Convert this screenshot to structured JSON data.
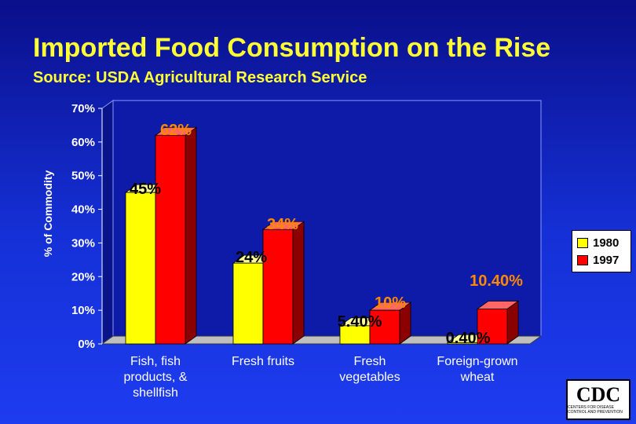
{
  "slide": {
    "title": "Imported Food Consumption on the Rise",
    "subtitle": "Source: USDA Agricultural Research Service"
  },
  "colors": {
    "text": "#ffff33",
    "label": "#ffffff",
    "bar1980": "#ffff00",
    "bar1997": "#ff0000",
    "pct1997": "#ff8800",
    "pct1980": "#000000",
    "plot": "#0d1ba8"
  },
  "logo": {
    "text": "CDC",
    "subtext": "CENTERS FOR DISEASE CONTROL AND PREVENTION"
  },
  "chart_data": {
    "type": "bar",
    "style": "3d-clustered",
    "ylabel": "% of Commodity",
    "ylim": [
      0,
      70
    ],
    "yticks": [
      "0%",
      "10%",
      "20%",
      "30%",
      "40%",
      "50%",
      "60%",
      "70%"
    ],
    "categories": [
      [
        "Fish, fish",
        "products, &",
        "shellfish"
      ],
      [
        "Fresh fruits"
      ],
      [
        "Fresh",
        "vegetables"
      ],
      [
        "Foreign-grown",
        "wheat"
      ]
    ],
    "series": [
      {
        "name": "1980",
        "values": [
          45,
          24,
          5.4,
          0.4
        ],
        "labels": [
          "45%",
          "24%",
          "5.40%",
          "0.40%"
        ],
        "color": "#ffff00"
      },
      {
        "name": "1997",
        "values": [
          62,
          34,
          10,
          10.4
        ],
        "labels": [
          "62%",
          "34%",
          "10%",
          "10.40%"
        ],
        "color": "#ff0000"
      }
    ],
    "grid": false,
    "legend": "right"
  }
}
